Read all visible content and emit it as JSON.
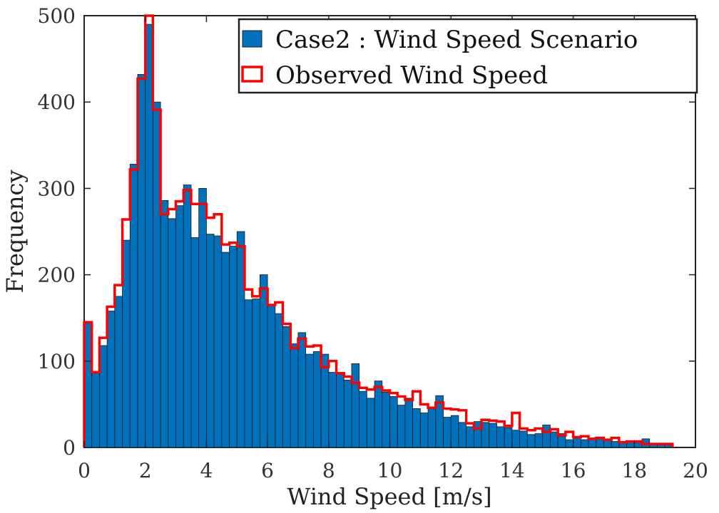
{
  "chart_data": {
    "type": "bar",
    "xlabel": "Wind Speed [m/s]",
    "ylabel": "Frequency",
    "xlim": [
      0,
      20
    ],
    "ylim": [
      0,
      500
    ],
    "xticks": [
      0,
      2,
      4,
      6,
      8,
      10,
      12,
      14,
      16,
      18,
      20
    ],
    "yticks": [
      0,
      100,
      200,
      300,
      400,
      500
    ],
    "grid": false,
    "legend_position": "top-right",
    "bin_width": 0.25,
    "x": [
      0.125,
      0.375,
      0.625,
      0.875,
      1.125,
      1.375,
      1.625,
      1.875,
      2.125,
      2.375,
      2.625,
      2.875,
      3.125,
      3.375,
      3.625,
      3.875,
      4.125,
      4.375,
      4.625,
      4.875,
      5.125,
      5.375,
      5.625,
      5.875,
      6.125,
      6.375,
      6.625,
      6.875,
      7.125,
      7.375,
      7.625,
      7.875,
      8.125,
      8.375,
      8.625,
      8.875,
      9.125,
      9.375,
      9.625,
      9.875,
      10.125,
      10.375,
      10.625,
      10.875,
      11.125,
      11.375,
      11.625,
      11.875,
      12.125,
      12.375,
      12.625,
      12.875,
      13.125,
      13.375,
      13.625,
      13.875,
      14.125,
      14.375,
      14.625,
      14.875,
      15.125,
      15.375,
      15.625,
      15.875,
      16.125,
      16.375,
      16.625,
      16.875,
      17.125,
      17.375,
      17.625,
      17.875,
      18.125,
      18.375,
      18.625,
      18.875,
      19.125
    ],
    "series": [
      {
        "name": "Case2 : Wind Speed Scenario",
        "style": "filled",
        "color": "#0072BD",
        "values": [
          146,
          86,
          118,
          158,
          175,
          240,
          328,
          432,
          490,
          400,
          286,
          265,
          280,
          304,
          243,
          300,
          247,
          245,
          226,
          233,
          250,
          171,
          172,
          200,
          165,
          155,
          140,
          120,
          133,
          108,
          111,
          108,
          87,
          87,
          78,
          97,
          65,
          57,
          77,
          64,
          59,
          49,
          57,
          45,
          40,
          47,
          60,
          35,
          37,
          29,
          24,
          30,
          29,
          28,
          24,
          23,
          20,
          19,
          15,
          16,
          26,
          18,
          16,
          9,
          11,
          9,
          11,
          10,
          8,
          7,
          5,
          6,
          6,
          10,
          5,
          3,
          3
        ]
      },
      {
        "name": "Observed Wind Speed",
        "style": "outline",
        "color": "#FF0000",
        "values": [
          145,
          87,
          127,
          163,
          188,
          264,
          322,
          427,
          500,
          391,
          270,
          276,
          285,
          298,
          282,
          282,
          266,
          270,
          235,
          237,
          233,
          183,
          175,
          184,
          165,
          168,
          143,
          115,
          126,
          117,
          118,
          93,
          100,
          86,
          82,
          75,
          69,
          67,
          70,
          66,
          63,
          59,
          55,
          65,
          50,
          46,
          52,
          45,
          44,
          43,
          28,
          22,
          32,
          31,
          30,
          25,
          40,
          22,
          20,
          22,
          18,
          21,
          14,
          18,
          12,
          13,
          10,
          11,
          9,
          11,
          6,
          7,
          7,
          4,
          4,
          4,
          4
        ]
      }
    ]
  }
}
